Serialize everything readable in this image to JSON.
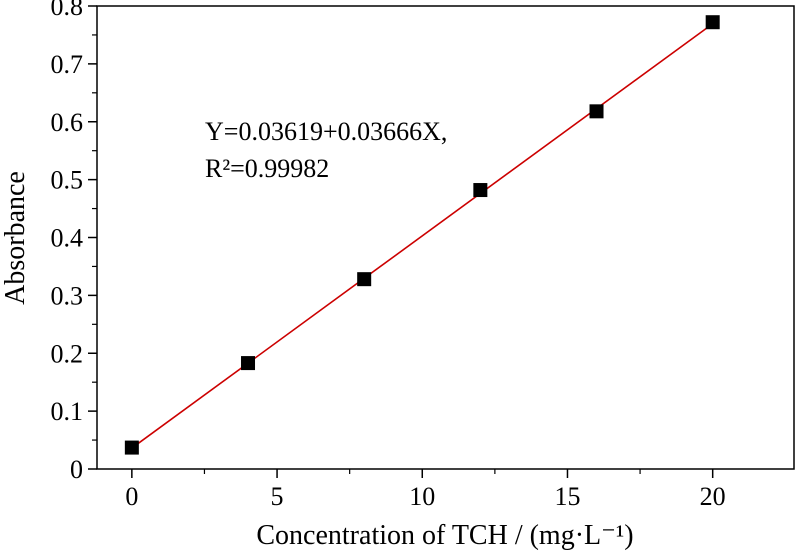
{
  "chart_data": {
    "type": "scatter",
    "xlabel": "Concentration of TCH / (mg·L⁻¹)",
    "ylabel": "Absorbance",
    "xlim": [
      -1.2,
      22.8
    ],
    "ylim": [
      0,
      0.8
    ],
    "x_ticks": [
      0,
      5,
      10,
      15,
      20
    ],
    "y_ticks": [
      0,
      0.1,
      0.2,
      0.3,
      0.4,
      0.5,
      0.6,
      0.7,
      0.8
    ],
    "x_tick_labels": [
      "0",
      "5",
      "10",
      "15",
      "20"
    ],
    "y_tick_labels": [
      "0",
      "0.1",
      "0.2",
      "0.3",
      "0.4",
      "0.5",
      "0.6",
      "0.7",
      "0.8"
    ],
    "grid": false,
    "series": [
      {
        "marker": "square",
        "color": "#000000",
        "x": [
          0,
          4,
          8,
          12,
          16,
          20
        ],
        "y": [
          0.037,
          0.183,
          0.328,
          0.482,
          0.618,
          0.772
        ]
      }
    ],
    "fit": {
      "color": "#cc0000",
      "intercept": 0.03619,
      "slope": 0.03666,
      "x_range": [
        0,
        20
      ]
    },
    "annotation": {
      "equation": "Y=0.03619+0.03666X,",
      "r2": "R²=0.99982"
    }
  }
}
